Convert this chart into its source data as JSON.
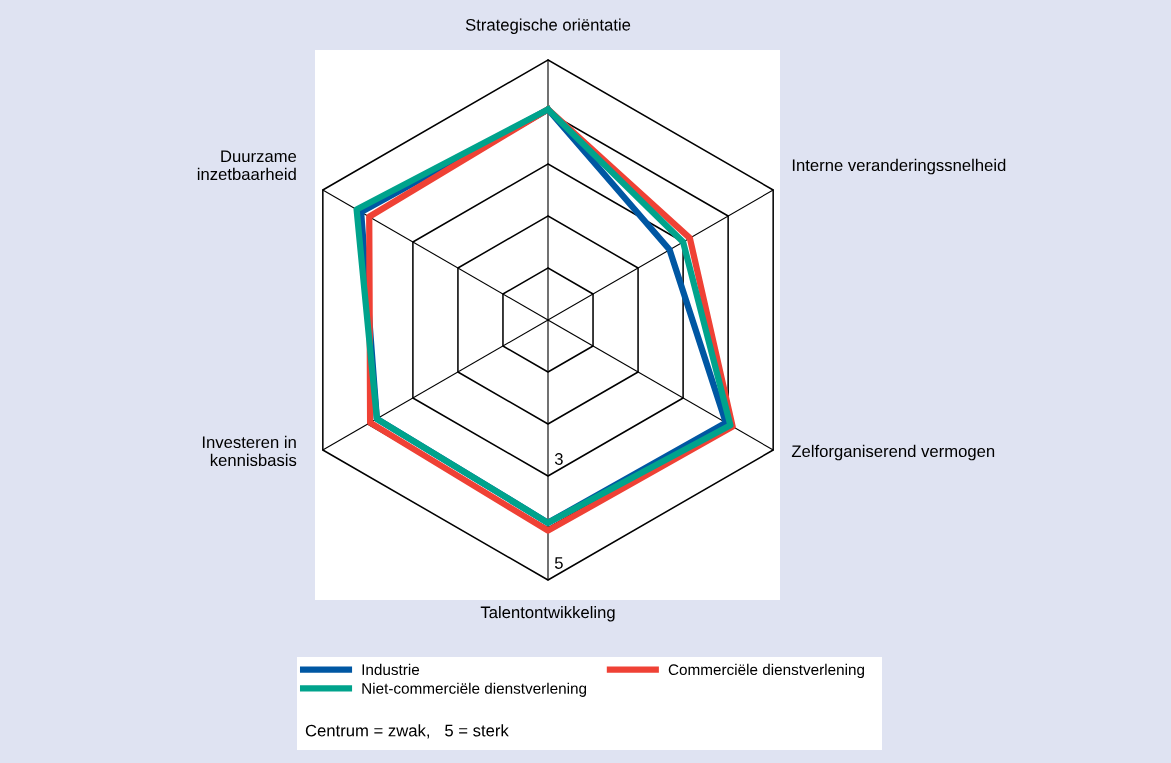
{
  "chart_data": {
    "type": "radar",
    "categories": [
      "Strategische oriëntatie",
      "Interne veranderingssnelheid",
      "Zelforganiserend vermogen",
      "Talentontwikkeling",
      "Investeren in\nkennisbasis",
      "Duurzame\ninzetbaarheid"
    ],
    "ylim": [
      0,
      5
    ],
    "yticks": [
      3,
      5
    ],
    "grid": true,
    "series": [
      {
        "name": "Industrie",
        "color": "#0057a3",
        "values": [
          4.05,
          2.7,
          3.95,
          3.9,
          3.8,
          4.15
        ]
      },
      {
        "name": "Commerciële dienstverlening",
        "color": "#ef4135",
        "values": [
          4.05,
          3.15,
          4.1,
          4.05,
          3.95,
          3.97
        ]
      },
      {
        "name": "Niet-commerciële dienstverlening",
        "color": "#00a38c",
        "values": [
          4.05,
          3.0,
          4.05,
          3.9,
          3.8,
          4.25
        ]
      }
    ],
    "legend": "bottom",
    "annotations": [
      "Centrum = zwak,   5 = sterk"
    ]
  }
}
